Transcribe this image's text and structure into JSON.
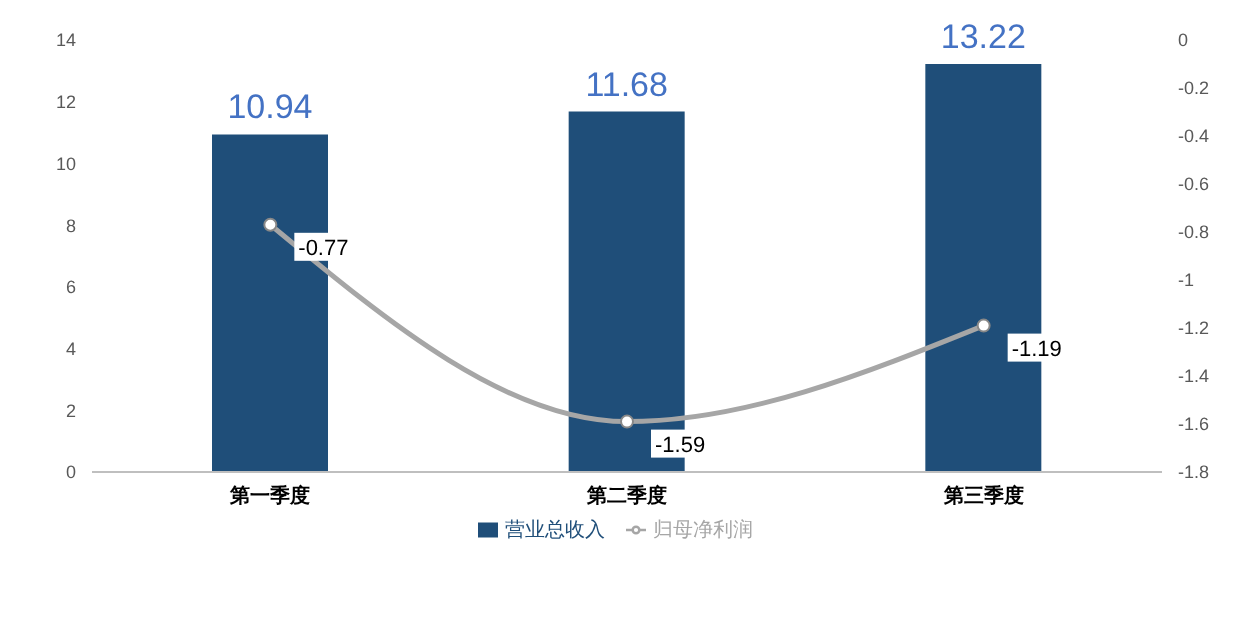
{
  "chart_data": {
    "type": "bar",
    "categories": [
      "第一季度",
      "第二季度",
      "第三季度"
    ],
    "series": [
      {
        "name": "营业总收入",
        "color": "#1f4e79",
        "values": [
          10.94,
          11.68,
          13.22
        ]
      },
      {
        "name": "归母净利润",
        "type": "line",
        "axis": "y2",
        "color": "#a6a6a6",
        "values": [
          -0.77,
          -1.59,
          -1.19
        ]
      }
    ],
    "ylim": [
      0,
      14
    ],
    "yticks": [
      0,
      2,
      4,
      6,
      8,
      10,
      12,
      14
    ],
    "y2lim": [
      -1.8,
      0
    ],
    "y2ticks": [
      -1.8,
      -1.6,
      -1.4,
      -1.2,
      -1,
      -0.8,
      -0.6,
      -0.4,
      -0.2,
      0
    ],
    "data_labels": true,
    "legend": "bottom",
    "marker": "circle",
    "line_style": "solid"
  }
}
